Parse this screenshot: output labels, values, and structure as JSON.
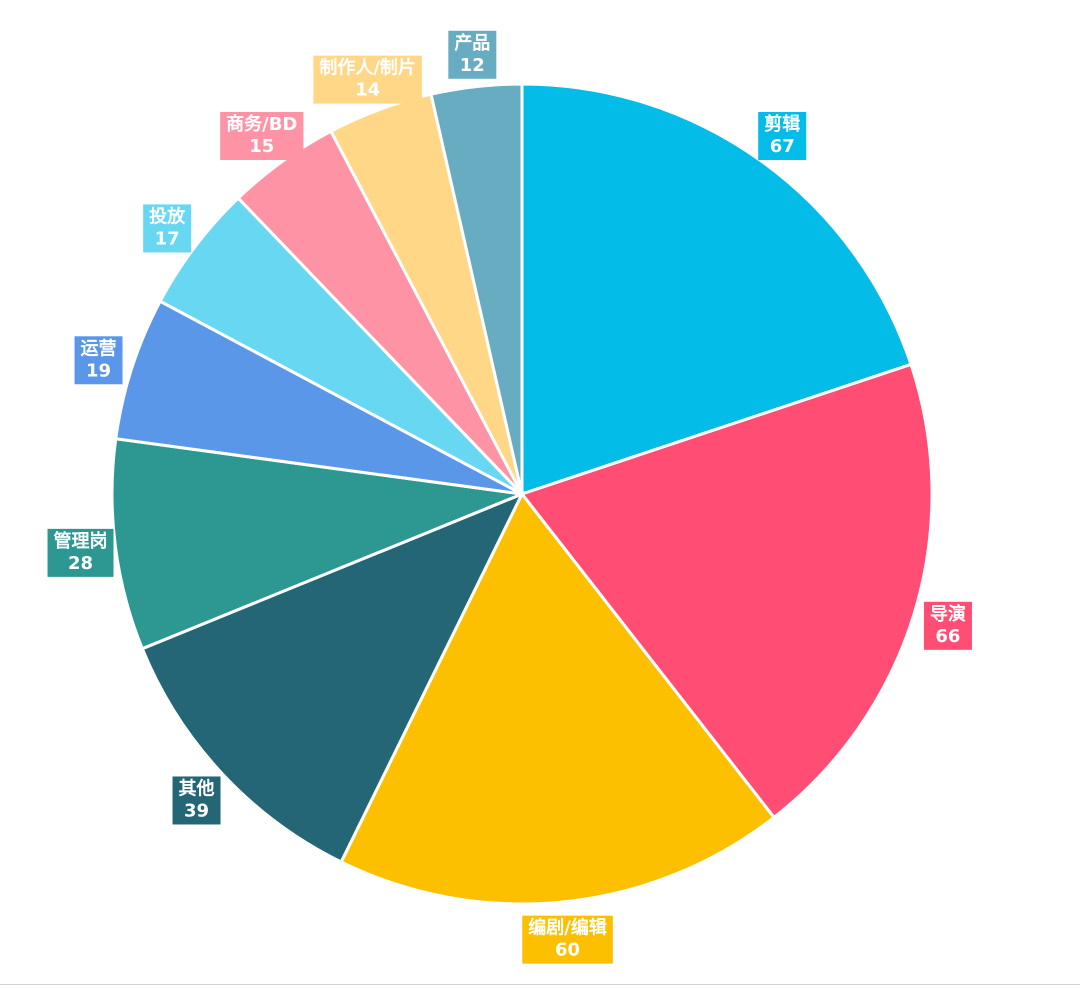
{
  "chart_data": {
    "type": "pie",
    "start_angle_deg": 0,
    "direction": "clockwise",
    "slices": [
      {
        "label": "剪辑",
        "value": 67,
        "color": "#04BCE8"
      },
      {
        "label": "导演",
        "value": 66,
        "color": "#FF4D73"
      },
      {
        "label": "编剧/编辑",
        "value": 60,
        "color": "#FDC000"
      },
      {
        "label": "其他",
        "value": 39,
        "color": "#256676"
      },
      {
        "label": "管理岗",
        "value": 28,
        "color": "#2D9892"
      },
      {
        "label": "运营",
        "value": 19,
        "color": "#5B97E9"
      },
      {
        "label": "投放",
        "value": 17,
        "color": "#68D7F2"
      },
      {
        "label": "商务/BD",
        "value": 15,
        "color": "#FF93A6"
      },
      {
        "label": "制作人/制片",
        "value": 14,
        "color": "#FFD786"
      },
      {
        "label": "产品",
        "value": 12,
        "color": "#68ACC1"
      }
    ]
  }
}
